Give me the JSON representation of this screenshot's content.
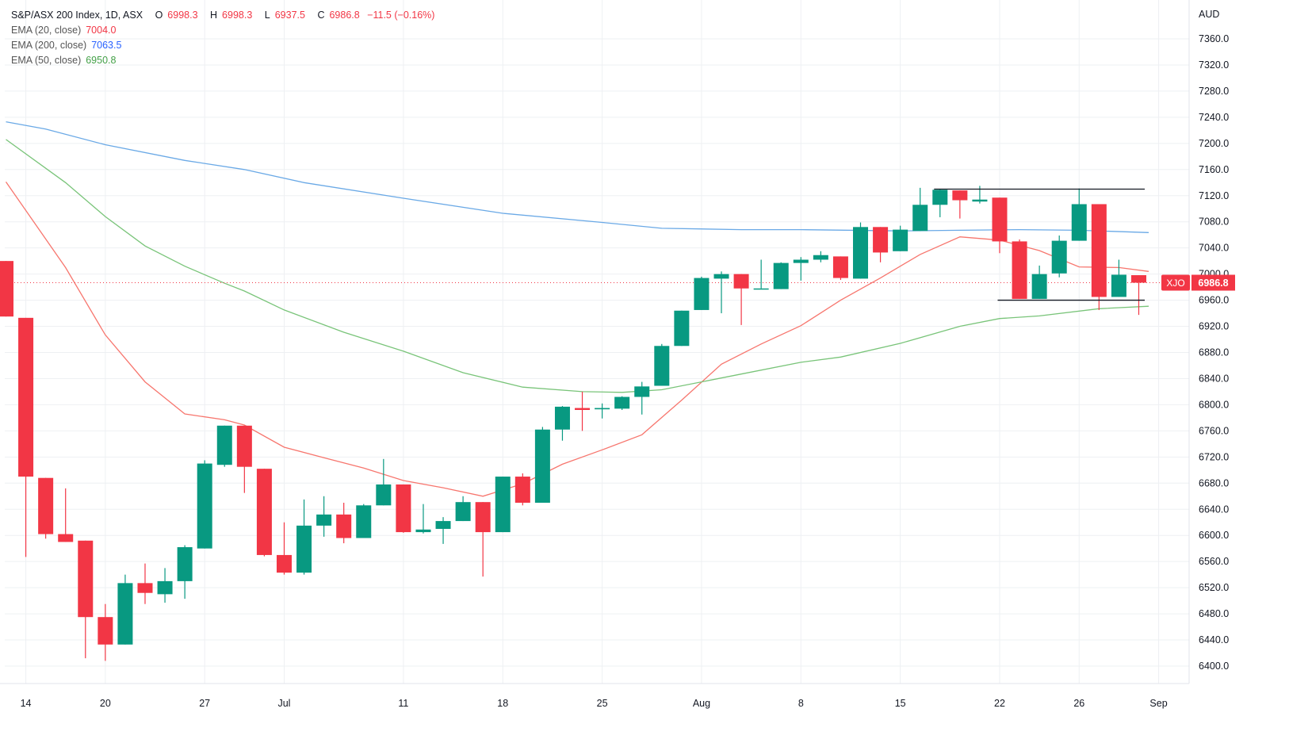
{
  "colors": {
    "up": "#089981",
    "down": "#f23645",
    "ema20": "#f7766e",
    "ema200": "#6aa9e6",
    "ema50": "#79c479",
    "grid": "#eef0f3",
    "axis_text": "#131722",
    "last_price_bg": "#f23645",
    "last_price_text": "#ffffff"
  },
  "legend": {
    "symbol_line": "S&P/ASX 200 Index, 1D, ASX",
    "o_label": "O",
    "o_value": "6998.3",
    "h_label": "H",
    "h_value": "6998.3",
    "l_label": "L",
    "l_value": "6937.5",
    "c_label": "C",
    "c_value": "6986.8",
    "change": "−11.5 (−0.16%)",
    "ema20_label": "EMA (20, close)",
    "ema20_value": "7004.0",
    "ema200_label": "EMA (200, close)",
    "ema200_value": "7063.5",
    "ema50_label": "EMA (50, close)",
    "ema50_value": "6950.8"
  },
  "price_axis": {
    "currency": "AUD",
    "ticks": [
      "7360.0",
      "7320.0",
      "7280.0",
      "7240.0",
      "7200.0",
      "7160.0",
      "7120.0",
      "7080.0",
      "7040.0",
      "7000.0",
      "6960.0",
      "6920.0",
      "6880.0",
      "6840.0",
      "6800.0",
      "6760.0",
      "6720.0",
      "6680.0",
      "6640.0",
      "6600.0",
      "6560.0",
      "6520.0",
      "6480.0",
      "6440.0",
      "6400.0"
    ],
    "last_symbol": "XJO",
    "last_price": "6986.8"
  },
  "time_axis": {
    "labels": [
      {
        "label": "14",
        "bar": 1
      },
      {
        "label": "20",
        "bar": 5
      },
      {
        "label": "27",
        "bar": 10
      },
      {
        "label": "Jul",
        "bar": 14
      },
      {
        "label": "11",
        "bar": 20
      },
      {
        "label": "18",
        "bar": 25
      },
      {
        "label": "25",
        "bar": 30
      },
      {
        "label": "Aug",
        "bar": 35
      },
      {
        "label": "8",
        "bar": 40
      },
      {
        "label": "15",
        "bar": 45
      },
      {
        "label": "22",
        "bar": 50
      },
      {
        "label": "26",
        "bar": 54
      },
      {
        "label": "Sep",
        "bar": 58
      }
    ]
  },
  "chart_data": {
    "type": "candlestick",
    "title": "S&P/ASX 200 Index, 1D, ASX",
    "y_unit": "AUD",
    "ylim": [
      6375,
      7385
    ],
    "grid": true,
    "legend_position": "top-left",
    "candles": [
      {
        "o": 7020,
        "h": 7020,
        "l": 6935,
        "c": 6935
      },
      {
        "o": 6933,
        "h": 6933,
        "l": 6567,
        "c": 6690
      },
      {
        "o": 6688,
        "h": 6688,
        "l": 6595,
        "c": 6602
      },
      {
        "o": 6602,
        "h": 6672,
        "l": 6590,
        "c": 6590
      },
      {
        "o": 6592,
        "h": 6592,
        "l": 6412,
        "c": 6475
      },
      {
        "o": 6475,
        "h": 6495,
        "l": 6408,
        "c": 6433
      },
      {
        "o": 6433,
        "h": 6540,
        "l": 6433,
        "c": 6527
      },
      {
        "o": 6527,
        "h": 6557,
        "l": 6495,
        "c": 6512
      },
      {
        "o": 6510,
        "h": 6550,
        "l": 6497,
        "c": 6530
      },
      {
        "o": 6530,
        "h": 6585,
        "l": 6503,
        "c": 6582
      },
      {
        "o": 6580,
        "h": 6715,
        "l": 6580,
        "c": 6710
      },
      {
        "o": 6708,
        "h": 6768,
        "l": 6705,
        "c": 6768
      },
      {
        "o": 6768,
        "h": 6768,
        "l": 6665,
        "c": 6705
      },
      {
        "o": 6702,
        "h": 6702,
        "l": 6568,
        "c": 6570
      },
      {
        "o": 6570,
        "h": 6620,
        "l": 6540,
        "c": 6543
      },
      {
        "o": 6543,
        "h": 6655,
        "l": 6540,
        "c": 6615
      },
      {
        "o": 6615,
        "h": 6660,
        "l": 6598,
        "c": 6632
      },
      {
        "o": 6632,
        "h": 6650,
        "l": 6588,
        "c": 6596
      },
      {
        "o": 6596,
        "h": 6648,
        "l": 6596,
        "c": 6646
      },
      {
        "o": 6646,
        "h": 6717,
        "l": 6646,
        "c": 6678
      },
      {
        "o": 6678,
        "h": 6678,
        "l": 6604,
        "c": 6605
      },
      {
        "o": 6605,
        "h": 6648,
        "l": 6603,
        "c": 6609
      },
      {
        "o": 6610,
        "h": 6628,
        "l": 6587,
        "c": 6622
      },
      {
        "o": 6622,
        "h": 6660,
        "l": 6622,
        "c": 6651
      },
      {
        "o": 6651,
        "h": 6651,
        "l": 6537,
        "c": 6605
      },
      {
        "o": 6605,
        "h": 6690,
        "l": 6605,
        "c": 6690
      },
      {
        "o": 6690,
        "h": 6695,
        "l": 6646,
        "c": 6650
      },
      {
        "o": 6650,
        "h": 6766,
        "l": 6650,
        "c": 6762
      },
      {
        "o": 6762,
        "h": 6798,
        "l": 6745,
        "c": 6797
      },
      {
        "o": 6795,
        "h": 6820,
        "l": 6760,
        "c": 6792
      },
      {
        "o": 6793,
        "h": 6802,
        "l": 6779,
        "c": 6795
      },
      {
        "o": 6794,
        "h": 6813,
        "l": 6792,
        "c": 6812
      },
      {
        "o": 6812,
        "h": 6835,
        "l": 6785,
        "c": 6828
      },
      {
        "o": 6829,
        "h": 6893,
        "l": 6829,
        "c": 6890
      },
      {
        "o": 6890,
        "h": 6944,
        "l": 6890,
        "c": 6944
      },
      {
        "o": 6945,
        "h": 6996,
        "l": 6945,
        "c": 6994
      },
      {
        "o": 6993,
        "h": 7004,
        "l": 6940,
        "c": 7000
      },
      {
        "o": 7000,
        "h": 7000,
        "l": 6922,
        "c": 6978
      },
      {
        "o": 6978,
        "h": 7022,
        "l": 6978,
        "c": 6978
      },
      {
        "o": 6977,
        "h": 7018,
        "l": 6977,
        "c": 7017
      },
      {
        "o": 7017,
        "h": 7026,
        "l": 6990,
        "c": 7022
      },
      {
        "o": 7022,
        "h": 7035,
        "l": 7018,
        "c": 7029
      },
      {
        "o": 7027,
        "h": 7027,
        "l": 6991,
        "c": 6994
      },
      {
        "o": 6993,
        "h": 7079,
        "l": 6993,
        "c": 7072
      },
      {
        "o": 7072,
        "h": 7072,
        "l": 7018,
        "c": 7033
      },
      {
        "o": 7035,
        "h": 7074,
        "l": 7035,
        "c": 7068
      },
      {
        "o": 7066,
        "h": 7132,
        "l": 7066,
        "c": 7106
      },
      {
        "o": 7106,
        "h": 7130,
        "l": 7087,
        "c": 7129
      },
      {
        "o": 7128,
        "h": 7128,
        "l": 7085,
        "c": 7113
      },
      {
        "o": 7111,
        "h": 7135,
        "l": 7108,
        "c": 7114
      },
      {
        "o": 7117,
        "h": 7117,
        "l": 7032,
        "c": 7050
      },
      {
        "o": 7050,
        "h": 7053,
        "l": 6962,
        "c": 6962
      },
      {
        "o": 6962,
        "h": 7013,
        "l": 6962,
        "c": 7000
      },
      {
        "o": 7001,
        "h": 7059,
        "l": 6995,
        "c": 7051
      },
      {
        "o": 7051,
        "h": 7131,
        "l": 7051,
        "c": 7107
      },
      {
        "o": 7107,
        "h": 7107,
        "l": 6945,
        "c": 6965
      },
      {
        "o": 6965,
        "h": 7022,
        "l": 6965,
        "c": 6999
      },
      {
        "o": 6998.3,
        "h": 6998.3,
        "l": 6937.5,
        "c": 6986.8
      }
    ],
    "series": [
      {
        "name": "EMA (20, close)",
        "color": "#f7766e",
        "points": [
          [
            0,
            7141
          ],
          [
            3,
            7010
          ],
          [
            5,
            6907
          ],
          [
            7,
            6835
          ],
          [
            9,
            6786
          ],
          [
            11,
            6777
          ],
          [
            12,
            6769
          ],
          [
            14,
            6735
          ],
          [
            16,
            6719
          ],
          [
            18,
            6703
          ],
          [
            20,
            6684
          ],
          [
            22,
            6673
          ],
          [
            24,
            6660
          ],
          [
            26,
            6679
          ],
          [
            28,
            6709
          ],
          [
            30,
            6731
          ],
          [
            32,
            6754
          ],
          [
            34,
            6807
          ],
          [
            36,
            6862
          ],
          [
            38,
            6893
          ],
          [
            40,
            6921
          ],
          [
            42,
            6960
          ],
          [
            44,
            6994
          ],
          [
            46,
            7030
          ],
          [
            48,
            7057
          ],
          [
            50,
            7052
          ],
          [
            52,
            7036
          ],
          [
            54,
            7011
          ],
          [
            56,
            7010
          ],
          [
            57.5,
            7004
          ]
        ]
      },
      {
        "name": "EMA (200, close)",
        "color": "#6aa9e6",
        "points": [
          [
            0,
            7233
          ],
          [
            2,
            7222
          ],
          [
            5,
            7198
          ],
          [
            9,
            7174
          ],
          [
            12,
            7160
          ],
          [
            15,
            7140
          ],
          [
            20,
            7116
          ],
          [
            25,
            7093
          ],
          [
            30,
            7079
          ],
          [
            33,
            7070
          ],
          [
            37,
            7068
          ],
          [
            40,
            7068
          ],
          [
            45,
            7066
          ],
          [
            48,
            7067
          ],
          [
            51,
            7068
          ],
          [
            54,
            7067
          ],
          [
            57.5,
            7063.5
          ]
        ]
      },
      {
        "name": "EMA (50, close)",
        "color": "#79c479",
        "points": [
          [
            0,
            7206
          ],
          [
            3,
            7140
          ],
          [
            5,
            7088
          ],
          [
            7,
            7043
          ],
          [
            9,
            7012
          ],
          [
            11,
            6986
          ],
          [
            12,
            6974
          ],
          [
            14,
            6945
          ],
          [
            17,
            6911
          ],
          [
            20,
            6882
          ],
          [
            23,
            6849
          ],
          [
            26,
            6827
          ],
          [
            29,
            6820
          ],
          [
            31,
            6819
          ],
          [
            33,
            6823
          ],
          [
            37,
            6847
          ],
          [
            40,
            6865
          ],
          [
            42,
            6873
          ],
          [
            45,
            6894
          ],
          [
            48,
            6920
          ],
          [
            50,
            6932
          ],
          [
            52,
            6936
          ],
          [
            55,
            6947
          ],
          [
            57.5,
            6950.8
          ]
        ]
      }
    ],
    "lines": [
      {
        "name": "resistance",
        "price": 7130,
        "from": 46.7,
        "to": 57.3
      },
      {
        "name": "support",
        "price": 6960,
        "from": 49.9,
        "to": 57.3
      }
    ]
  }
}
